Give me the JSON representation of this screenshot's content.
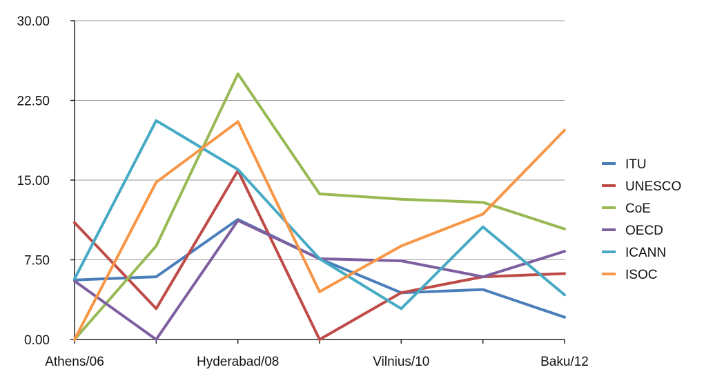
{
  "chart_data": {
    "type": "line",
    "title": "",
    "xlabel": "",
    "ylabel": "",
    "ylim": [
      0,
      30
    ],
    "y_ticks": [
      "0.00",
      "7.50",
      "15.00",
      "22.50",
      "30.00"
    ],
    "categories": [
      "Athens/06",
      "",
      "Hyderabad/08",
      "",
      "Vilnius/10",
      "",
      "Baku/12"
    ],
    "grid": "horizontal",
    "legend_position": "right",
    "series": [
      {
        "name": "ITU",
        "color": "#4a7ebb",
        "values": [
          5.6,
          5.9,
          11.3,
          7.6,
          4.4,
          4.7,
          2.1
        ]
      },
      {
        "name": "UNESCO",
        "color": "#be4b48",
        "values": [
          11.0,
          2.9,
          15.9,
          0.0,
          4.4,
          5.9,
          6.2
        ]
      },
      {
        "name": "CoE",
        "color": "#98b954",
        "values": [
          0.0,
          8.8,
          25.0,
          13.7,
          13.2,
          12.9,
          10.4
        ]
      },
      {
        "name": "OECD",
        "color": "#7d5fa0",
        "values": [
          5.5,
          0.0,
          11.2,
          7.6,
          7.4,
          5.9,
          8.3
        ]
      },
      {
        "name": "ICANN",
        "color": "#46aac5",
        "values": [
          5.7,
          20.6,
          16.0,
          7.6,
          2.9,
          10.6,
          4.2
        ]
      },
      {
        "name": "ISOC",
        "color": "#f79646",
        "values": [
          0.0,
          14.8,
          20.5,
          4.5,
          8.8,
          11.8,
          19.7
        ]
      }
    ]
  }
}
